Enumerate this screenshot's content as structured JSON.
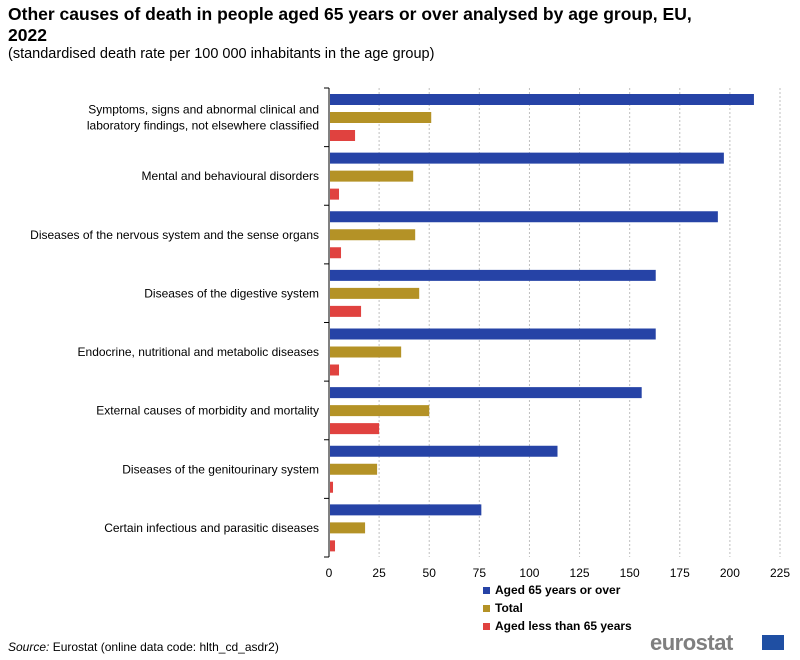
{
  "title": "Other causes of death in people aged 65 years or over analysed by age group, EU, 2022",
  "subtitle": "(standardised death rate per 100 000 inhabitants in the age group)",
  "source_prefix": "Source:",
  "source_text": "Eurostat (online data code: hlth_cd_asdr2)",
  "logo_text": "eurostat",
  "colors": {
    "aged65": "#2643a6",
    "total": "#b49226",
    "under65": "#e0423f",
    "grid": "#bfbfbf"
  },
  "chart_data": {
    "type": "bar",
    "orientation": "horizontal",
    "categories": [
      [
        "Symptoms, signs and abnormal clinical and",
        "laboratory findings, not elsewhere classified"
      ],
      [
        "Mental and behavioural disorders"
      ],
      [
        "Diseases of the nervous system and the sense organs"
      ],
      [
        "Diseases of the digestive system"
      ],
      [
        "Endocrine, nutritional and metabolic diseases"
      ],
      [
        "External causes of morbidity and mortality"
      ],
      [
        "Diseases of the genitourinary system"
      ],
      [
        "Certain infectious and parasitic diseases"
      ]
    ],
    "series": [
      {
        "name": "Aged 65 years or over",
        "color": "#2643a6",
        "values": [
          212,
          197,
          194,
          163,
          163,
          156,
          114,
          76
        ]
      },
      {
        "name": "Total",
        "color": "#b49226",
        "values": [
          51,
          42,
          43,
          45,
          36,
          50,
          24,
          18
        ]
      },
      {
        "name": "Aged less than 65 years",
        "color": "#e0423f",
        "values": [
          13,
          5,
          6,
          16,
          5,
          25,
          2,
          3
        ]
      }
    ],
    "xlim": [
      0,
      225
    ],
    "xticks": [
      0,
      25,
      50,
      75,
      100,
      125,
      150,
      175,
      200,
      225
    ],
    "grid": true,
    "legend_position": "bottom"
  }
}
